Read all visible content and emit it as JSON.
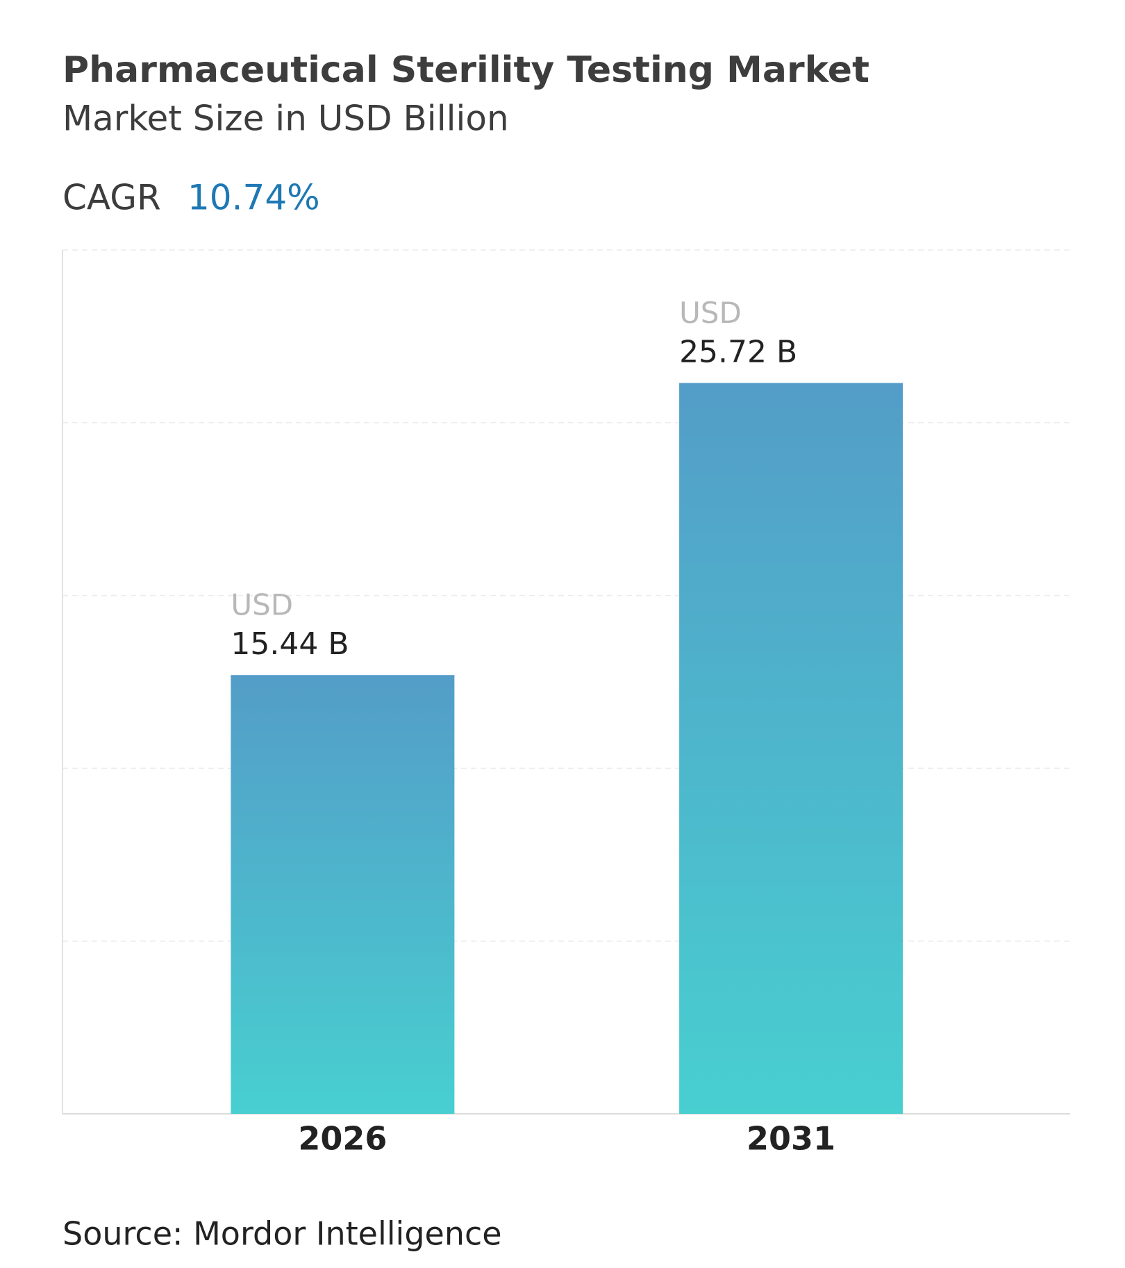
{
  "chart_data": {
    "type": "bar",
    "title": "Pharmaceutical Sterility Testing Market",
    "subtitle": "Market Size in USD Billion",
    "cagr_label": "CAGR",
    "cagr_value": "10.74%",
    "categories": [
      "2026",
      "2031"
    ],
    "values": [
      15.44,
      25.72
    ],
    "value_labels": [
      "15.44 B",
      "25.72 B"
    ],
    "value_label_prefix": "USD",
    "color_top": "#539dc8",
    "color_bottom": "#48cfd0",
    "ylim": [
      0,
      30.4
    ],
    "yticks": [
      0,
      6.08,
      12.16,
      18.24,
      24.32,
      30.4
    ],
    "grid": true,
    "source": "Source: Mordor Intelligence"
  }
}
